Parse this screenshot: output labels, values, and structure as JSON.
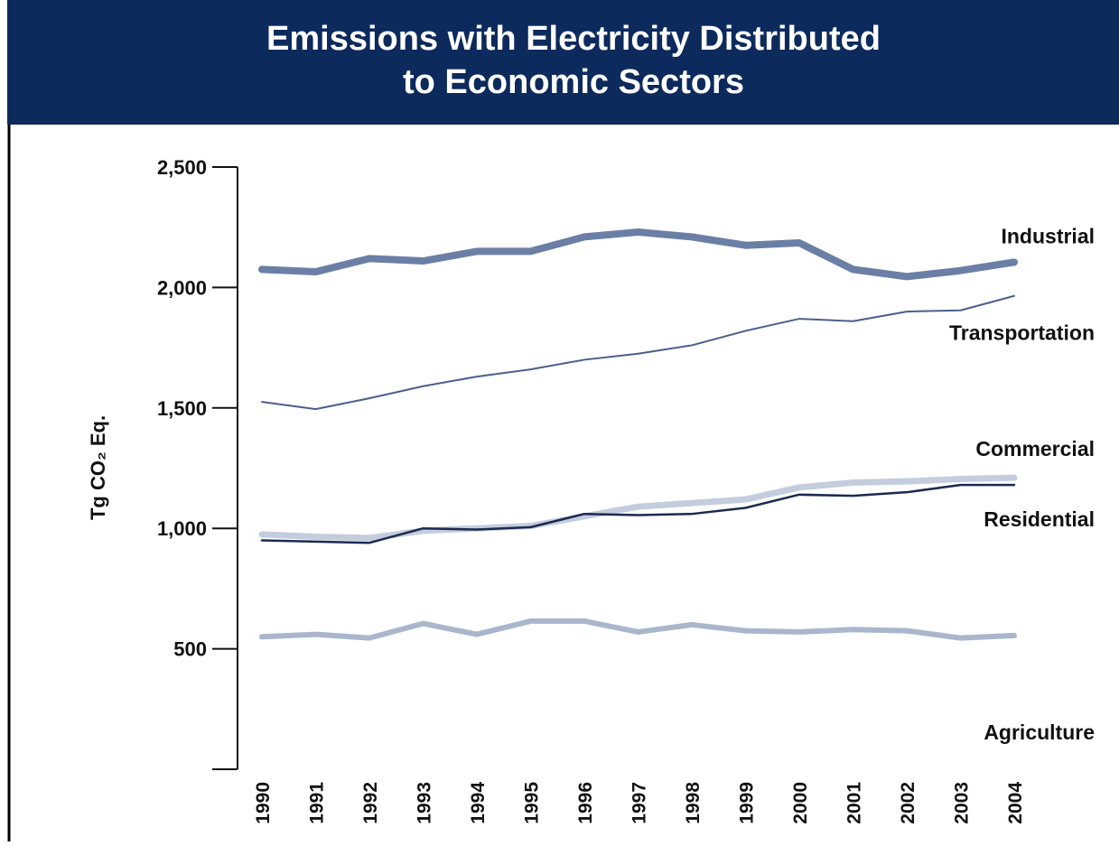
{
  "chart_data": {
    "type": "line",
    "title": [
      "Emissions with Electricity Distributed",
      "to Economic Sectors"
    ],
    "y_label": "Tg CO₂ Eq.",
    "categories": [
      "1990",
      "1991",
      "1992",
      "1993",
      "1994",
      "1995",
      "1996",
      "1997",
      "1998",
      "1999",
      "2000",
      "2001",
      "2002",
      "2003",
      "2004"
    ],
    "series": [
      {
        "name": "Industrial",
        "color": "#6b7fa6",
        "values": [
          2075,
          2065,
          2120,
          2110,
          2150,
          2150,
          2210,
          2230,
          2210,
          2175,
          2185,
          2075,
          2045,
          2070,
          2105
        ]
      },
      {
        "name": "Transportation",
        "color": "#4a5f8a",
        "values": [
          1525,
          1495,
          1540,
          1590,
          1630,
          1660,
          1700,
          1725,
          1760,
          1820,
          1870,
          1860,
          1900,
          1905,
          1965
        ]
      },
      {
        "name": "Commercial",
        "color": "#c3cddd",
        "values": [
          975,
          965,
          960,
          990,
          1000,
          1010,
          1050,
          1090,
          1105,
          1120,
          1170,
          1190,
          1195,
          1205,
          1210
        ]
      },
      {
        "name": "Residential",
        "color": "#1a2a50",
        "values": [
          950,
          945,
          940,
          1000,
          995,
          1005,
          1060,
          1055,
          1060,
          1085,
          1140,
          1135,
          1150,
          1180,
          1180
        ]
      },
      {
        "name": "Agriculture",
        "color": "#a9b6cc",
        "values": [
          550,
          560,
          545,
          605,
          560,
          615,
          615,
          570,
          600,
          575,
          570,
          580,
          575,
          545,
          555
        ]
      }
    ],
    "ylim": [
      0,
      2500
    ],
    "yticks": [
      500,
      {
        "value": 1000,
        "label": "1,000"
      },
      {
        "value": 1500,
        "label": "1,500"
      },
      {
        "value": 2000,
        "label": "2,000"
      },
      {
        "value": 2500,
        "label": "2,500"
      }
    ],
    "grid": false
  }
}
